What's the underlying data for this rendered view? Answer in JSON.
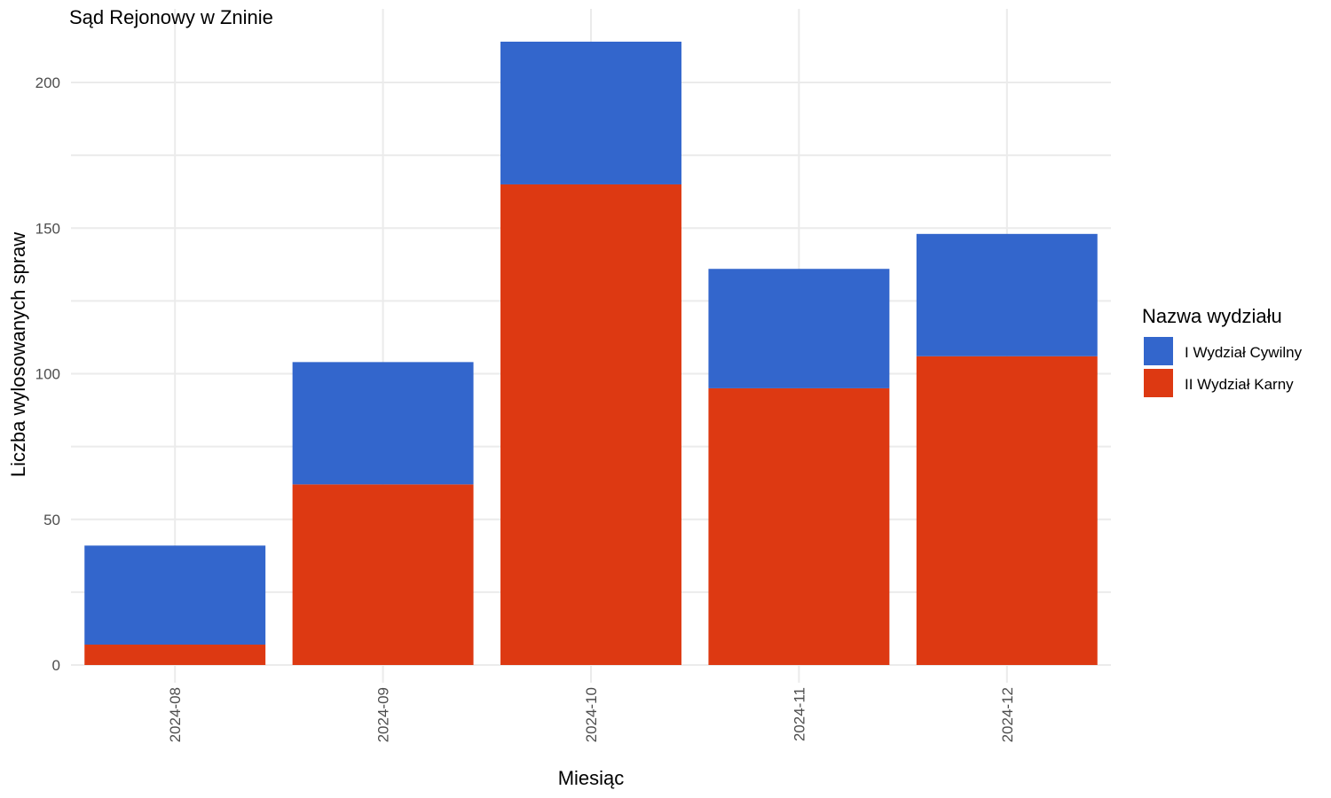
{
  "chart_data": {
    "type": "bar",
    "stacked": true,
    "title": "Sąd Rejonowy w Zninie",
    "xlabel": "Miesiąc",
    "ylabel": "Liczba wylosowanych spraw",
    "categories": [
      "2024-08",
      "2024-09",
      "2024-10",
      "2024-11",
      "2024-12"
    ],
    "series": [
      {
        "name": "II Wydział Karny",
        "color": "#dd3912",
        "values": [
          7,
          62,
          165,
          95,
          106
        ]
      },
      {
        "name": "I Wydział Cywilny",
        "color": "#3366cc",
        "values": [
          34,
          42,
          49,
          41,
          42
        ]
      }
    ],
    "ylim": [
      0,
      220
    ],
    "yticks": [
      0,
      50,
      100,
      150,
      200
    ],
    "grid": true,
    "legend": {
      "title": "Nazwa wydziału",
      "position": "right",
      "entries": [
        "I Wydział Cywilny",
        "II Wydział Karny"
      ]
    }
  }
}
